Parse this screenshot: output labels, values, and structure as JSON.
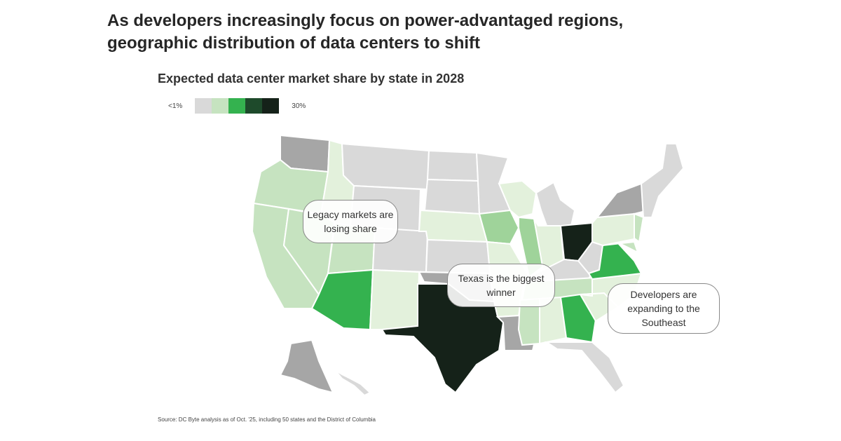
{
  "title": "As developers increasingly focus on power-advantaged regions, geographic distribution of data centers to shift",
  "subtitle": "Expected data center market share by state in 2028",
  "legend": {
    "low_label": "<1%",
    "high_label": "30%",
    "colors": [
      "#d9d9d9",
      "#c6e3c0",
      "#34b24f",
      "#1e4a2b",
      "#152219"
    ]
  },
  "state_colors": {
    "no_data_gray": "#a6a6a6",
    "very_light": "#e3f1dc"
  },
  "callouts": [
    {
      "text": "Legacy markets are losing share"
    },
    {
      "text": "Texas is the biggest winner"
    },
    {
      "text": "Developers are expanding to the Southeast"
    }
  ],
  "source": "Source: DC Byte analysis as of Oct. '25, including 50 states and the District of Columbia"
}
